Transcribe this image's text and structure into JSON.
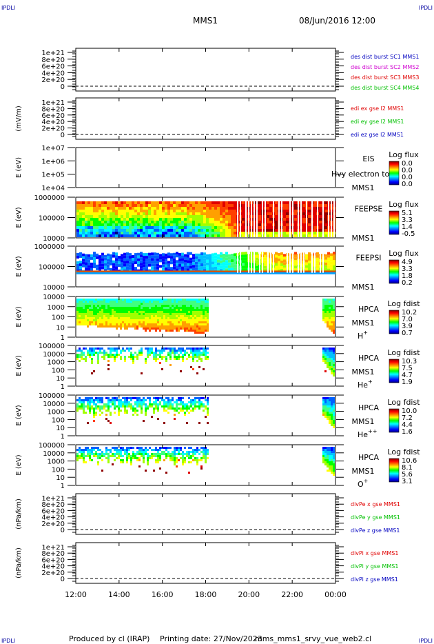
{
  "header": {
    "corner_label": "IPDLI",
    "title": "MMS1",
    "datetime": "08/Jun/2016 12:00"
  },
  "footer": {
    "produced_by": "Produced by cl (IRAP)",
    "printing_date": "Printing date: 27/Nov/2023",
    "filename": "mms_mms1_srvy_vue_web2.cl"
  },
  "x_axis": {
    "tick_labels": [
      "12:00",
      "14:00",
      "16:00",
      "18:00",
      "20:00",
      "22:00",
      "00:00"
    ],
    "range_hours": [
      12,
      24
    ]
  },
  "colors": {
    "red": "#e00000",
    "green": "#00c000",
    "blue": "#0000c0",
    "magenta": "#d000d0",
    "navy": "#0000a0"
  },
  "chart_data": [
    {
      "type": "line",
      "panel": "des-dist-burst",
      "ylabel": "",
      "yticks": [
        "1e+21",
        "8e+20",
        "6e+20",
        "4e+20",
        "2e+20",
        "0"
      ],
      "series": [
        {
          "name": "des dist burst SC1 MMS1",
          "color": "#0000c0",
          "values": [
            0,
            0
          ]
        },
        {
          "name": "des dist burst SC2 MMS2",
          "color": "#d000d0",
          "values": [
            0,
            0
          ]
        },
        {
          "name": "des dist burst SC3 MMS3",
          "color": "#e00000",
          "values": [
            0,
            0
          ]
        },
        {
          "name": "des dist burst SC4 MMS4",
          "color": "#00c000",
          "values": [
            0,
            0
          ]
        }
      ]
    },
    {
      "type": "line",
      "panel": "edi-e-gse",
      "ylabel": "(mV/m)",
      "yticks": [
        "1e+21",
        "8e+20",
        "6e+20",
        "4e+20",
        "2e+20",
        "0"
      ],
      "series": [
        {
          "name": "edi ex gse l2 MMS1",
          "color": "#e00000",
          "values": [
            0,
            0
          ]
        },
        {
          "name": "edi ey gse l2 MMS1",
          "color": "#00c000",
          "values": [
            0,
            0
          ]
        },
        {
          "name": "edi ez gse l2 MMS1",
          "color": "#0000c0",
          "values": [
            0,
            0
          ]
        }
      ]
    },
    {
      "type": "heatmap",
      "panel": "eis",
      "ylabel": "E (eV)",
      "yticks": [
        "1e+07",
        "1e+06",
        "1e+05",
        "1e+04"
      ],
      "instrument": "EIS",
      "spacecraft": "MMS1",
      "species": "Hvy electron to",
      "colorbar_title": "Log flux",
      "colorbar_ticks": [
        "0.0",
        "0.0",
        "0.0",
        "0.0"
      ]
    },
    {
      "type": "heatmap",
      "panel": "feeps-e",
      "ylabel": "E (eV)",
      "yticks": [
        "1000000",
        "100000",
        "10000"
      ],
      "instrument": "FEEPSE",
      "spacecraft": "MMS1",
      "colorbar_title": "Log flux",
      "colorbar_ticks": [
        "5.1",
        "3.3",
        "1.4",
        "-0.5"
      ]
    },
    {
      "type": "heatmap",
      "panel": "feeps-i",
      "ylabel": "E (eV)",
      "yticks": [
        "1000000",
        "100000",
        "10000"
      ],
      "instrument": "FEEPSI",
      "spacecraft": "MMS1",
      "colorbar_title": "Log flux",
      "colorbar_ticks": [
        "4.9",
        "3.3",
        "1.8",
        "0.2"
      ]
    },
    {
      "type": "heatmap",
      "panel": "hpca-h",
      "ylabel": "E (eV)",
      "yticks": [
        "10000",
        "1000",
        "100",
        "10",
        "1"
      ],
      "instrument": "HPCA",
      "spacecraft": "MMS1",
      "species": "H",
      "species_charge": "+",
      "colorbar_title": "Log fdist",
      "colorbar_ticks": [
        "10.2",
        "7.0",
        "3.9",
        "0.7"
      ]
    },
    {
      "type": "heatmap",
      "panel": "hpca-he",
      "ylabel": "E (eV)",
      "yticks": [
        "100000",
        "10000",
        "1000",
        "100",
        "10",
        "1"
      ],
      "instrument": "HPCA",
      "spacecraft": "MMS1",
      "species": "He",
      "species_charge": "+",
      "colorbar_title": "Log fdist",
      "colorbar_ticks": [
        "10.3",
        "7.5",
        "4.7",
        "1.9"
      ]
    },
    {
      "type": "heatmap",
      "panel": "hpca-he2",
      "ylabel": "E (eV)",
      "yticks": [
        "100000",
        "10000",
        "1000",
        "100",
        "10",
        "1"
      ],
      "instrument": "HPCA",
      "spacecraft": "MMS1",
      "species": "He",
      "species_charge": "++",
      "colorbar_title": "Log fdist",
      "colorbar_ticks": [
        "10.0",
        "7.2",
        "4.4",
        "1.6"
      ]
    },
    {
      "type": "heatmap",
      "panel": "hpca-o",
      "ylabel": "E (eV)",
      "yticks": [
        "100000",
        "10000",
        "1000",
        "100",
        "10",
        "1"
      ],
      "instrument": "HPCA",
      "spacecraft": "MMS1",
      "species": "O",
      "species_charge": "+",
      "colorbar_title": "Log fdist",
      "colorbar_ticks": [
        "10.6",
        "8.1",
        "5.6",
        "3.1"
      ]
    },
    {
      "type": "line",
      "panel": "divpe",
      "ylabel": "(nPa/km)",
      "yticks": [
        "1e+21",
        "8e+20",
        "6e+20",
        "4e+20",
        "2e+20",
        "0"
      ],
      "series": [
        {
          "name": "divPe x gse MMS1",
          "color": "#e00000",
          "values": [
            0,
            0
          ]
        },
        {
          "name": "divPe y gse MMS1",
          "color": "#00c000",
          "values": [
            0,
            0
          ]
        },
        {
          "name": "divPe z gse MMS1",
          "color": "#0000c0",
          "values": [
            0,
            0
          ]
        }
      ]
    },
    {
      "type": "line",
      "panel": "divpi",
      "ylabel": "(nPa/km)",
      "yticks": [
        "1e+21",
        "8e+20",
        "6e+20",
        "4e+20",
        "2e+20",
        "0"
      ],
      "series": [
        {
          "name": "divPi x gse MMS1",
          "color": "#e00000",
          "values": [
            0,
            0
          ]
        },
        {
          "name": "divPi y gse MMS1",
          "color": "#00c000",
          "values": [
            0,
            0
          ]
        },
        {
          "name": "divPi z gse MMS1",
          "color": "#0000c0",
          "values": [
            0,
            0
          ]
        }
      ]
    }
  ]
}
